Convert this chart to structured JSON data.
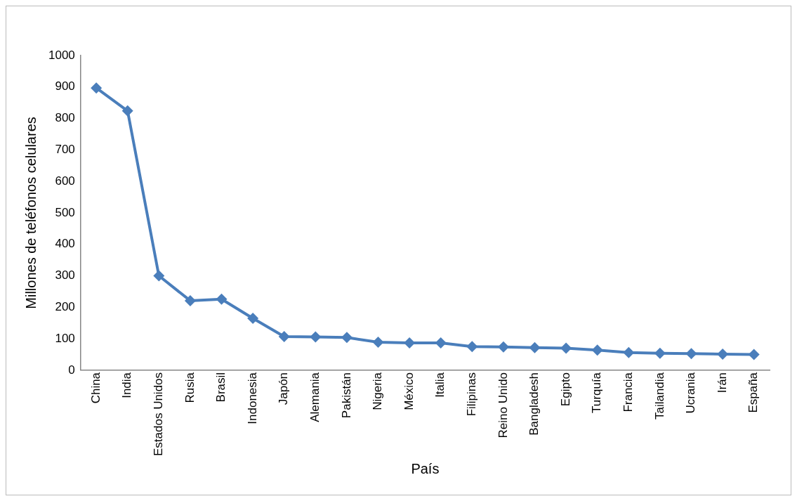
{
  "chart_data": {
    "type": "line",
    "xlabel": "País",
    "ylabel": "Millones de teléfonos celulares",
    "categories": [
      "China",
      "India",
      "Estados Unidos",
      "Rusia",
      "Brasil",
      "Indonesia",
      "Japón",
      "Alemania",
      "Pakistán",
      "Nigeria",
      "México",
      "Italia",
      "Filipinas",
      "Reino Unido",
      "Bangladesh",
      "Egipto",
      "Turquía",
      "Francia",
      "Tailandia",
      "Ucrania",
      "Irán",
      "España"
    ],
    "series": [
      {
        "color": "#4a7ebb",
        "values": [
          897,
          824,
          300,
          221,
          226,
          165,
          107,
          106,
          104,
          89,
          87,
          87,
          75,
          74,
          72,
          70,
          64,
          56,
          54,
          53,
          51,
          50
        ]
      }
    ],
    "ylim": [
      0,
      1000
    ],
    "yticks": [
      0,
      100,
      200,
      300,
      400,
      500,
      600,
      700,
      800,
      900,
      1000
    ],
    "grid": false,
    "legend": false,
    "marker": "diamond",
    "line_style": "solid"
  }
}
